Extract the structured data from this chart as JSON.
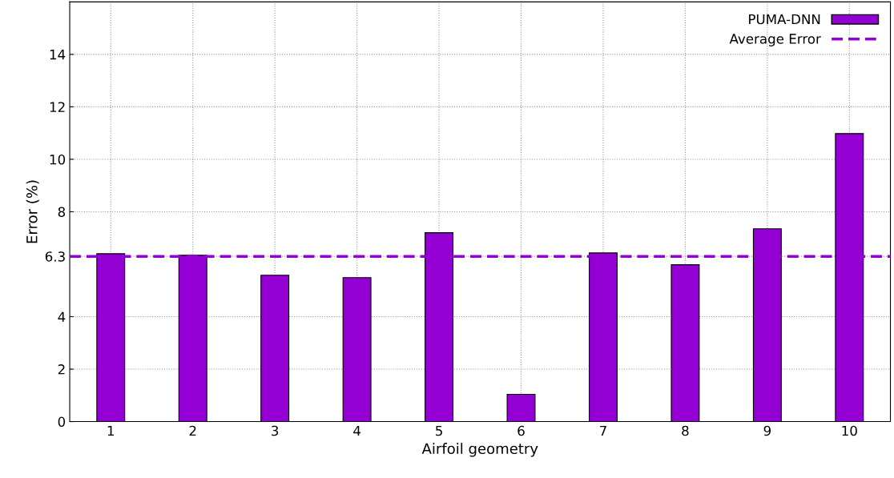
{
  "chart_data": {
    "type": "bar",
    "xlabel": "Airfoil geometry",
    "ylabel": "Error (%)",
    "categories": [
      "1",
      "2",
      "3",
      "4",
      "5",
      "6",
      "7",
      "8",
      "9",
      "10"
    ],
    "series": [
      {
        "name": "PUMA-DNN",
        "color": "#9400d3",
        "values": [
          6.4,
          6.34,
          5.58,
          5.49,
          7.2,
          1.04,
          6.43,
          5.98,
          7.35,
          10.98
        ]
      }
    ],
    "ylim": [
      0,
      16
    ],
    "yticks": [
      0,
      2,
      4,
      6.3,
      8,
      10,
      12,
      14
    ],
    "ref_lines": [
      {
        "axis": "y",
        "value": 6.3,
        "label": "Average Error",
        "color": "#9400d3",
        "line_style": "dashed"
      }
    ],
    "grid": true,
    "legend": "top right"
  }
}
